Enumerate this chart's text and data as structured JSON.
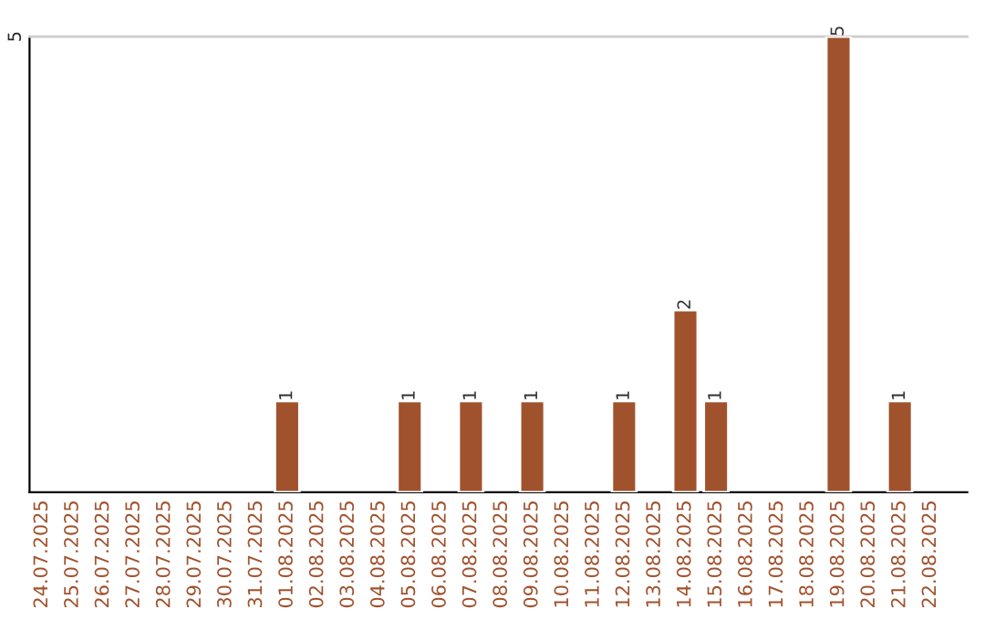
{
  "chart_data": {
    "type": "bar",
    "categories": [
      "24.07.2025",
      "25.07.2025",
      "26.07.2025",
      "27.07.2025",
      "28.07.2025",
      "29.07.2025",
      "30.07.2025",
      "31.07.2025",
      "01.08.2025",
      "02.08.2025",
      "03.08.2025",
      "04.08.2025",
      "05.08.2025",
      "06.08.2025",
      "07.08.2025",
      "08.08.2025",
      "09.08.2025",
      "10.08.2025",
      "11.08.2025",
      "12.08.2025",
      "13.08.2025",
      "14.08.2025",
      "15.08.2025",
      "16.08.2025",
      "17.08.2025",
      "18.08.2025",
      "19.08.2025",
      "20.08.2025",
      "21.08.2025",
      "22.08.2025"
    ],
    "values": [
      null,
      null,
      null,
      null,
      null,
      null,
      null,
      null,
      1,
      null,
      null,
      null,
      1,
      null,
      1,
      null,
      1,
      null,
      null,
      1,
      null,
      2,
      1,
      null,
      null,
      null,
      5,
      null,
      1,
      null
    ],
    "value_labels": [
      null,
      null,
      null,
      null,
      null,
      null,
      null,
      null,
      "1",
      null,
      null,
      null,
      "1",
      null,
      "1",
      null,
      "1",
      null,
      null,
      "1",
      null,
      "2",
      "1",
      null,
      null,
      null,
      "5",
      null,
      "1",
      null
    ],
    "color": "#a0522d",
    "ylim": [
      0,
      5
    ],
    "yticks": [
      5
    ]
  }
}
